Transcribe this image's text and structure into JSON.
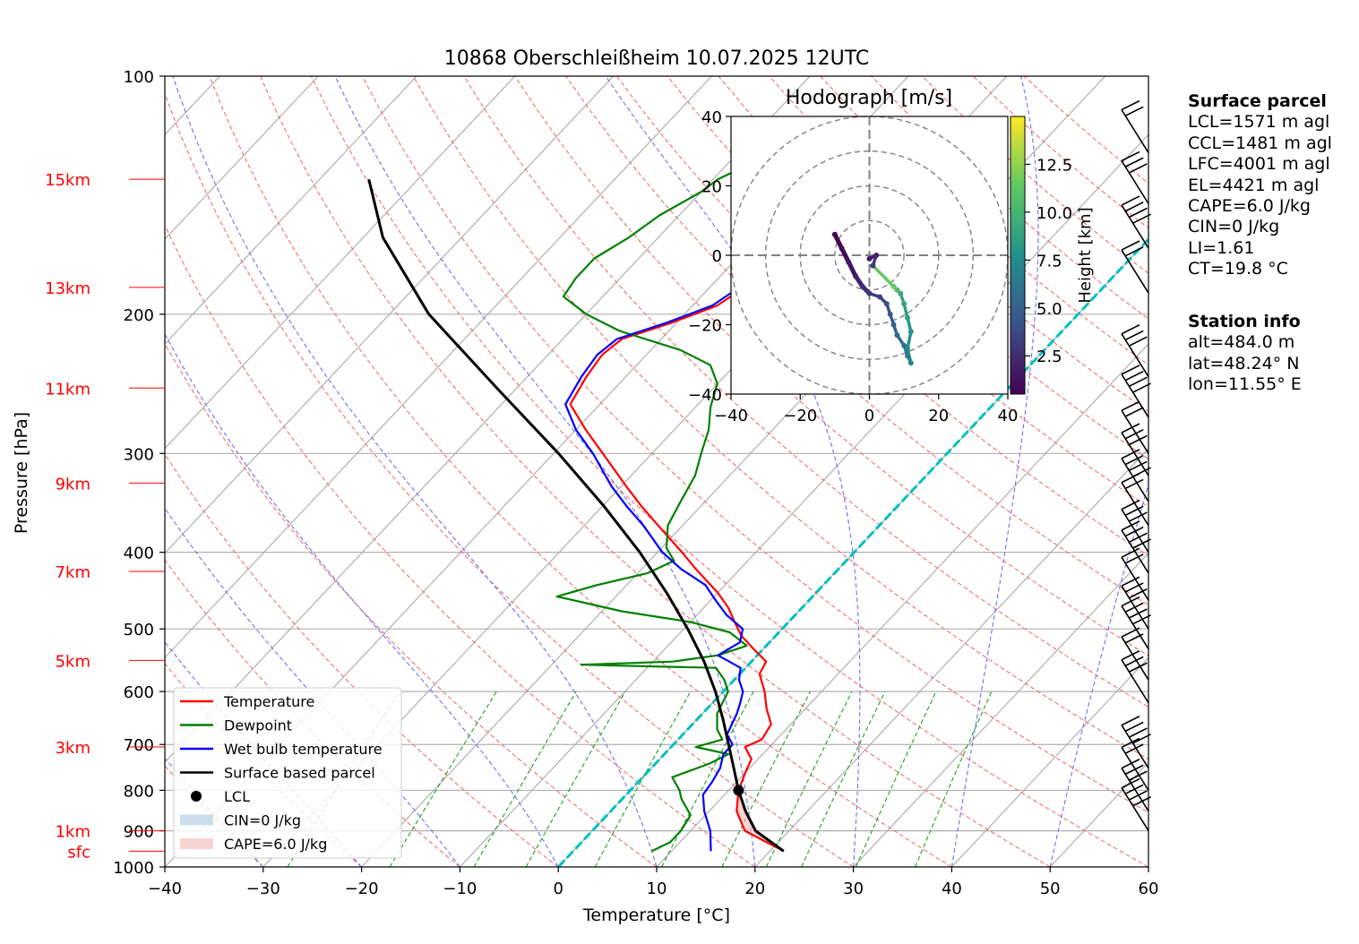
{
  "title": "10868 Oberschleißheim 10.07.2025 12UTC",
  "surface_parcel": {
    "heading": "Surface parcel",
    "lines": [
      "LCL=1571 m agl",
      "CCL=1481 m agl",
      "LFC=4001 m agl",
      "EL=4421 m agl",
      "CAPE=6.0 J/kg",
      "CIN=0 J/kg",
      "LI=1.61",
      "CT=19.8 °C"
    ]
  },
  "station_info": {
    "heading": "Station info",
    "lines": [
      "alt=484.0 m",
      "lat=48.24° N",
      "lon=11.55° E"
    ]
  },
  "chart_data": [
    {
      "type": "line",
      "title": "10868 Oberschleißheim 10.07.2025 12UTC",
      "xlabel": "Temperature [°C]",
      "ylabel": "Pressure [hPa]",
      "xlim": [
        -40,
        60
      ],
      "ylim": [
        1000,
        100
      ],
      "y_scale": "log",
      "x_ticks": [
        "−40",
        "−30",
        "−20",
        "−10",
        "0",
        "10",
        "20",
        "30",
        "40",
        "50",
        "60"
      ],
      "y_ticks": [
        1000,
        900,
        800,
        700,
        600,
        500,
        400,
        300,
        200,
        100
      ],
      "height_labels": [
        {
          "label": "sfc",
          "p": 955
        },
        {
          "label": "1km",
          "p": 900
        },
        {
          "label": "3km",
          "p": 705
        },
        {
          "label": "5km",
          "p": 548
        },
        {
          "label": "7km",
          "p": 423
        },
        {
          "label": "9km",
          "p": 327
        },
        {
          "label": "11km",
          "p": 248
        },
        {
          "label": "13km",
          "p": 185
        },
        {
          "label": "15km",
          "p": 135
        }
      ],
      "grid": true,
      "skew": "skew-T",
      "legend_position": "bottom-left",
      "legend": [
        {
          "label": "Temperature",
          "color": "#ff0000",
          "kind": "line"
        },
        {
          "label": "Dewpoint",
          "color": "#008000",
          "kind": "line"
        },
        {
          "label": "Wet bulb temperature",
          "color": "#0000ff",
          "kind": "line"
        },
        {
          "label": "Surface based parcel",
          "color": "#000000",
          "kind": "line"
        },
        {
          "label": "LCL",
          "color": "#000000",
          "kind": "dot"
        },
        {
          "label": "CIN=0 J/kg",
          "color": "#aac8e0",
          "kind": "patch"
        },
        {
          "label": "CAPE=6.0 J/kg",
          "color": "#f4b6b6",
          "kind": "patch"
        }
      ],
      "series": [
        {
          "name": "Temperature",
          "color": "#ff0000",
          "points": [
            [
              955,
              21.4
            ],
            [
              900,
              15.5
            ],
            [
              850,
              12.8
            ],
            [
              800,
              11.0
            ],
            [
              760,
              10.0
            ],
            [
              730,
              9.3
            ],
            [
              705,
              7.5
            ],
            [
              690,
              8.5
            ],
            [
              660,
              8.0
            ],
            [
              630,
              6.0
            ],
            [
              600,
              4.2
            ],
            [
              570,
              2.0
            ],
            [
              550,
              1.5
            ],
            [
              530,
              -1.0
            ],
            [
              510,
              -3.5
            ],
            [
              490,
              -5.5
            ],
            [
              470,
              -7.5
            ],
            [
              450,
              -10.0
            ],
            [
              420,
              -14.5
            ],
            [
              400,
              -17.5
            ],
            [
              370,
              -22.5
            ],
            [
              350,
              -26.0
            ],
            [
              330,
              -29.5
            ],
            [
              300,
              -35.0
            ],
            [
              280,
              -39.0
            ],
            [
              260,
              -43.0
            ],
            [
              240,
              -44.0
            ],
            [
              225,
              -44.5
            ],
            [
              215,
              -44.0
            ],
            [
              205,
              -40.5
            ],
            [
              195,
              -37.5
            ],
            [
              185,
              -36.5
            ],
            [
              175,
              -35.0
            ],
            [
              165,
              -33.5
            ],
            [
              150,
              -32.5
            ],
            [
              140,
              -30.5
            ],
            [
              135,
              -29.5
            ],
            [
              130,
              -29.5
            ]
          ]
        },
        {
          "name": "Dewpoint",
          "color": "#008000",
          "points": [
            [
              955,
              8.0
            ],
            [
              930,
              9.0
            ],
            [
              900,
              9.0
            ],
            [
              860,
              8.5
            ],
            [
              820,
              6.0
            ],
            [
              800,
              5.0
            ],
            [
              770,
              3.0
            ],
            [
              740,
              5.5
            ],
            [
              720,
              6.5
            ],
            [
              705,
              2.5
            ],
            [
              690,
              4.5
            ],
            [
              670,
              3.0
            ],
            [
              640,
              1.5
            ],
            [
              620,
              1.0
            ],
            [
              600,
              0.5
            ],
            [
              580,
              -1.0
            ],
            [
              560,
              -3.0
            ],
            [
              555,
              -17.0
            ],
            [
              550,
              -8.0
            ],
            [
              540,
              -4.0
            ],
            [
              525,
              -2.0
            ],
            [
              505,
              -5.0
            ],
            [
              490,
              -10.0
            ],
            [
              475,
              -18.0
            ],
            [
              455,
              -26.0
            ],
            [
              440,
              -23.0
            ],
            [
              425,
              -19.0
            ],
            [
              410,
              -17.5
            ],
            [
              395,
              -19.5
            ],
            [
              370,
              -21.5
            ],
            [
              345,
              -22.5
            ],
            [
              320,
              -23.5
            ],
            [
              300,
              -25.0
            ],
            [
              280,
              -26.5
            ],
            [
              262,
              -28.5
            ],
            [
              245,
              -30.0
            ],
            [
              232,
              -32.5
            ],
            [
              222,
              -37.0
            ],
            [
              210,
              -45.0
            ],
            [
              200,
              -50.0
            ],
            [
              190,
              -54.0
            ],
            [
              180,
              -54.5
            ],
            [
              170,
              -54.5
            ],
            [
              160,
              -53.0
            ],
            [
              150,
              -52.0
            ],
            [
              140,
              -50.0
            ],
            [
              135,
              -49.5
            ],
            [
              130,
              -48.0
            ]
          ]
        },
        {
          "name": "Wet bulb temperature",
          "color": "#0000ff",
          "points": [
            [
              955,
              14.0
            ],
            [
              900,
              12.0
            ],
            [
              850,
              9.5
            ],
            [
              810,
              7.8
            ],
            [
              780,
              7.5
            ],
            [
              750,
              7.0
            ],
            [
              720,
              6.0
            ],
            [
              700,
              6.0
            ],
            [
              680,
              4.5
            ],
            [
              660,
              4.0
            ],
            [
              640,
              3.5
            ],
            [
              620,
              2.8
            ],
            [
              600,
              2.0
            ],
            [
              580,
              0.5
            ],
            [
              560,
              -0.5
            ],
            [
              540,
              -4.0
            ],
            [
              520,
              -3.0
            ],
            [
              500,
              -4.0
            ],
            [
              480,
              -7.0
            ],
            [
              460,
              -9.5
            ],
            [
              440,
              -12.0
            ],
            [
              420,
              -16.0
            ],
            [
              400,
              -19.5
            ],
            [
              370,
              -24.0
            ],
            [
              350,
              -27.5
            ],
            [
              330,
              -31.0
            ],
            [
              300,
              -36.0
            ],
            [
              280,
              -40.0
            ],
            [
              260,
              -43.5
            ],
            [
              240,
              -44.5
            ],
            [
              225,
              -45.0
            ],
            [
              215,
              -44.5
            ],
            [
              205,
              -41.0
            ],
            [
              195,
              -38.0
            ],
            [
              185,
              -37.0
            ],
            [
              175,
              -35.5
            ],
            [
              165,
              -34.0
            ],
            [
              150,
              -33.0
            ],
            [
              140,
              -31.0
            ],
            [
              135,
              -30.0
            ],
            [
              130,
              -30.0
            ]
          ]
        },
        {
          "name": "Surface based parcel",
          "color": "#000000",
          "points": [
            [
              955,
              21.4
            ],
            [
              900,
              16.6
            ],
            [
              850,
              13.7
            ],
            [
              800,
              11.0
            ],
            [
              750,
              8.4
            ],
            [
              700,
              5.6
            ],
            [
              650,
              2.6
            ],
            [
              600,
              -0.8
            ],
            [
              550,
              -4.8
            ],
            [
              500,
              -9.6
            ],
            [
              450,
              -15.2
            ],
            [
              400,
              -21.8
            ],
            [
              350,
              -29.8
            ],
            [
              300,
              -39.5
            ],
            [
              250,
              -51.5
            ],
            [
              200,
              -66.0
            ],
            [
              160,
              -78.0
            ],
            [
              135,
              -85.0
            ]
          ]
        }
      ],
      "lcl": {
        "p": 800,
        "t": 11.0
      },
      "freezing_line_color": "#00c0c0"
    },
    {
      "type": "scatter",
      "title": "Hodograph [m/s]",
      "xlim": [
        -40,
        40
      ],
      "ylim": [
        -40,
        40
      ],
      "x_ticks": [
        "−40",
        "−20",
        "0",
        "20",
        "40"
      ],
      "y_ticks": [
        "40",
        "20",
        "0",
        "−20",
        "−40"
      ],
      "rings": [
        10,
        20,
        30,
        40
      ],
      "colorbar": {
        "label": "Height [km]",
        "ticks": [
          "12.5",
          "10.0",
          "7.5",
          "5.0",
          "2.5"
        ],
        "min": 0.5,
        "max": 15,
        "colormap": "viridis"
      },
      "points": [
        [
          -10,
          6,
          0.5
        ],
        [
          -8,
          2,
          1
        ],
        [
          -6,
          -2,
          1.5
        ],
        [
          -4,
          -6,
          2
        ],
        [
          -2,
          -9,
          2.5
        ],
        [
          0,
          -11,
          3
        ],
        [
          3,
          -12,
          3.5
        ],
        [
          5,
          -14,
          4
        ],
        [
          6,
          -17,
          4.5
        ],
        [
          7,
          -20,
          5
        ],
        [
          8,
          -23,
          5.5
        ],
        [
          10,
          -26,
          6
        ],
        [
          11,
          -29,
          6.5
        ],
        [
          12,
          -31,
          7
        ],
        [
          11,
          -27,
          7.5
        ],
        [
          12,
          -22,
          8
        ],
        [
          11,
          -18,
          8.5
        ],
        [
          10,
          -14,
          9
        ],
        [
          9,
          -11,
          9.5
        ],
        [
          8,
          -10,
          10.5
        ],
        [
          7,
          -9,
          11.5
        ],
        [
          1,
          -3,
          3
        ],
        [
          2,
          0,
          2
        ],
        [
          0,
          -1,
          1.5
        ]
      ]
    }
  ]
}
